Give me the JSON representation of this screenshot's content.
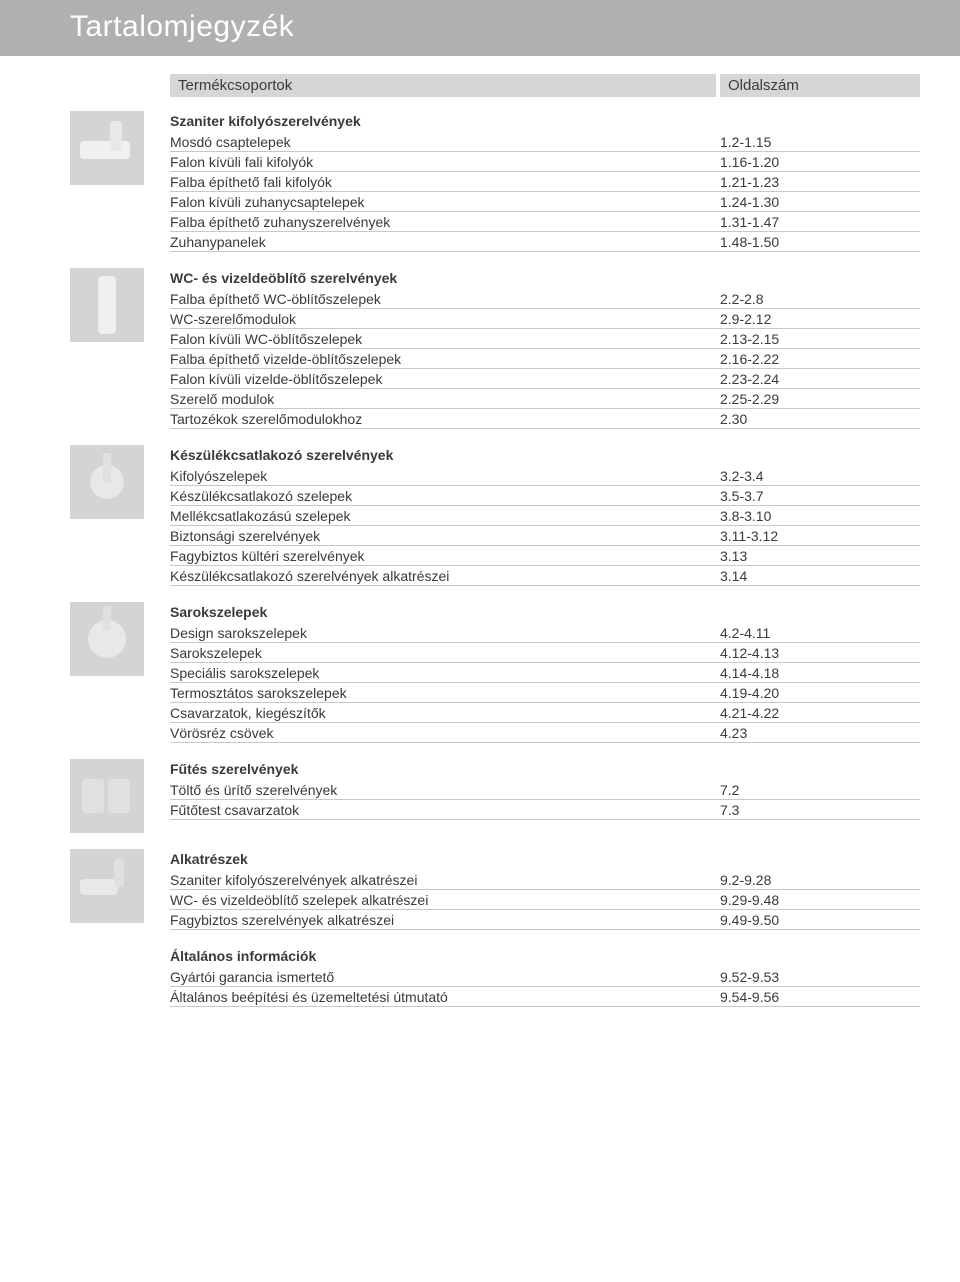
{
  "title": "Tartalomjegyzék",
  "header": {
    "left": "Termékcsoportok",
    "right": "Oldalszám"
  },
  "sections": [
    {
      "thumb": "s1",
      "name": "section-szaniter",
      "group": "Szaniter kifolyószerelvények",
      "rows": [
        {
          "label": "Mosdó csaptelepek",
          "val": "1.2-1.15"
        },
        {
          "label": "Falon kívüli fali kifolyók",
          "val": "1.16-1.20"
        },
        {
          "label": "Falba építhető fali kifolyók",
          "val": "1.21-1.23"
        },
        {
          "label": "Falon kívüli zuhanycsaptelepek",
          "val": "1.24-1.30"
        },
        {
          "label": "Falba építhető zuhanyszerelvények",
          "val": "1.31-1.47"
        },
        {
          "label": "Zuhanypanelek",
          "val": "1.48-1.50"
        }
      ]
    },
    {
      "thumb": "s2",
      "name": "section-wc",
      "group": "WC- és vizeldeöblítő szerelvények",
      "rows": [
        {
          "label": "Falba építhető WC-öblítőszelepek",
          "val": "2.2-2.8"
        },
        {
          "label": "WC-szerelőmodulok",
          "val": "2.9-2.12"
        },
        {
          "label": "Falon kívüli WC-öblítőszelepek",
          "val": "2.13-2.15"
        },
        {
          "label": "Falba építhető vizelde-öblítőszelepek",
          "val": "2.16-2.22"
        },
        {
          "label": "Falon kívüli vizelde-öblítőszelepek",
          "val": "2.23-2.24"
        },
        {
          "label": "Szerelő modulok",
          "val": "2.25-2.29"
        },
        {
          "label": "Tartozékok szerelőmodulokhoz",
          "val": "2.30"
        }
      ]
    },
    {
      "thumb": "s3",
      "name": "section-keszulek",
      "group": "Készülékcsatlakozó szerelvények",
      "rows": [
        {
          "label": "Kifolyószelepek",
          "val": "3.2-3.4"
        },
        {
          "label": "Készülékcsatlakozó szelepek",
          "val": "3.5-3.7"
        },
        {
          "label": "Mellékcsatlakozású szelepek",
          "val": "3.8-3.10"
        },
        {
          "label": "Biztonsági szerelvények",
          "val": "3.11-3.12"
        },
        {
          "label": "Fagybiztos kültéri szerelvények",
          "val": "3.13"
        },
        {
          "label": "Készülékcsatlakozó szerelvények alkatrészei",
          "val": "3.14"
        }
      ]
    },
    {
      "thumb": "s4",
      "name": "section-sarok",
      "group": "Sarokszelepek",
      "rows": [
        {
          "label": "Design sarokszelepek",
          "val": "4.2-4.11"
        },
        {
          "label": "Sarokszelepek",
          "val": "4.12-4.13"
        },
        {
          "label": "Speciális sarokszelepek",
          "val": "4.14-4.18"
        },
        {
          "label": "Termosztátos sarokszelepek",
          "val": "4.19-4.20"
        },
        {
          "label": "Csavarzatok, kiegészítők",
          "val": "4.21-4.22"
        },
        {
          "label": "Vörösréz csövek",
          "val": "4.23"
        }
      ]
    },
    {
      "thumb": "s5",
      "name": "section-futes",
      "group": "Fűtés szerelvények",
      "rows": [
        {
          "label": "Töltő és ürítő szerelvények",
          "val": "7.2"
        },
        {
          "label": "Fűtőtest csavarzatok",
          "val": "7.3"
        }
      ]
    },
    {
      "thumb": "s6",
      "name": "section-alkatreszek",
      "group": "Alkatrészek",
      "rows": [
        {
          "label": "Szaniter kifolyószerelvények alkatrészei",
          "val": "9.2-9.28"
        },
        {
          "label": "WC- és vizeldeöblítő szelepek alkatrészei",
          "val": "9.29-9.48"
        },
        {
          "label": "Fagybiztos szerelvények alkatrészei",
          "val": "9.49-9.50"
        }
      ]
    },
    {
      "thumb": "",
      "name": "section-altalanos",
      "group": "Általános információk",
      "rows": [
        {
          "label": "Gyártói garancia ismertető",
          "val": "9.52-9.53"
        },
        {
          "label": "Általános beépítési és üzemeltetési útmutató",
          "val": "9.54-9.56"
        }
      ]
    }
  ]
}
